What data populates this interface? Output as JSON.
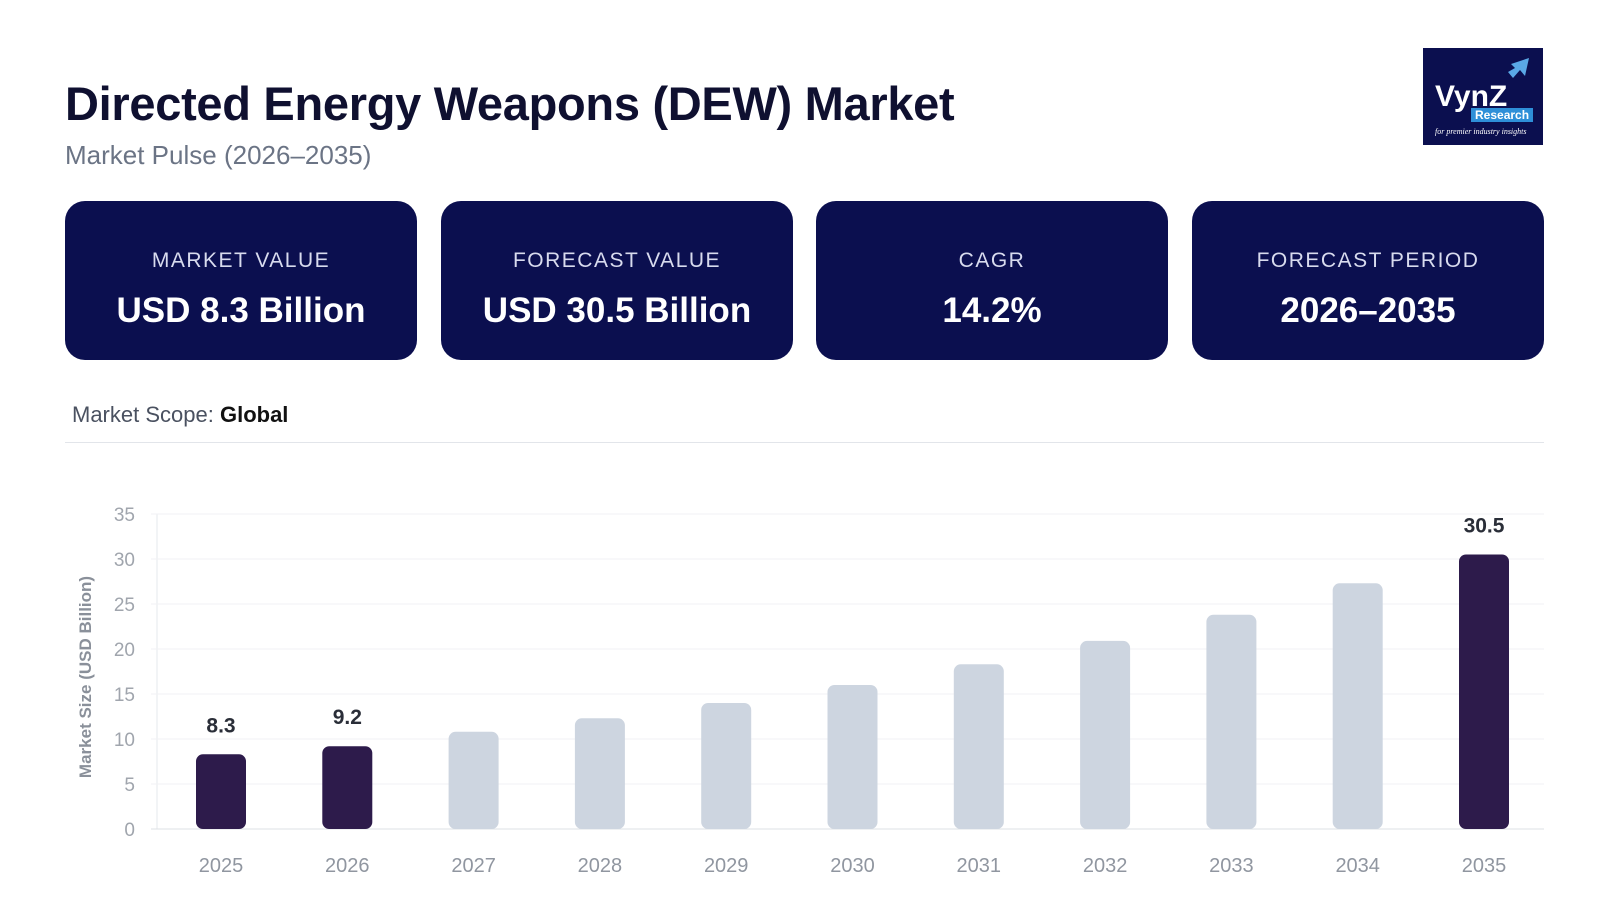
{
  "header": {
    "title": "Directed Energy Weapons (DEW) Market",
    "subtitle": "Market Pulse (2026–2035)"
  },
  "logo": {
    "text": "VynZ",
    "badge": "Research",
    "tagline": "for premier industry insights"
  },
  "cards": [
    {
      "label": "MARKET VALUE",
      "value": "USD 8.3 Billion"
    },
    {
      "label": "FORECAST VALUE",
      "value": "USD 30.5 Billion"
    },
    {
      "label": "CAGR",
      "value": "14.2%"
    },
    {
      "label": "FORECAST PERIOD",
      "value": "2026–2035"
    }
  ],
  "scope": {
    "label": "Market Scope:",
    "value": "Global"
  },
  "colors": {
    "navy": "#0b0f4f",
    "highlight_bar": "#2d1b4b",
    "muted_bar": "#cdd5e0"
  },
  "chart_data": {
    "type": "bar",
    "ylabel": "Market Size (USD Billion)",
    "ylim": [
      0,
      35
    ],
    "yticks": [
      0,
      5,
      10,
      15,
      20,
      25,
      30,
      35
    ],
    "grid": true,
    "categories": [
      "2025",
      "2026",
      "2027",
      "2028",
      "2029",
      "2030",
      "2031",
      "2032",
      "2033",
      "2034",
      "2035"
    ],
    "values": [
      8.3,
      9.2,
      10.8,
      12.3,
      14.0,
      16.0,
      18.3,
      20.9,
      23.8,
      27.3,
      30.5
    ],
    "highlighted": [
      "2025",
      "2026",
      "2035"
    ],
    "data_labels": {
      "2025": "8.3",
      "2026": "9.2",
      "2035": "30.5"
    }
  }
}
